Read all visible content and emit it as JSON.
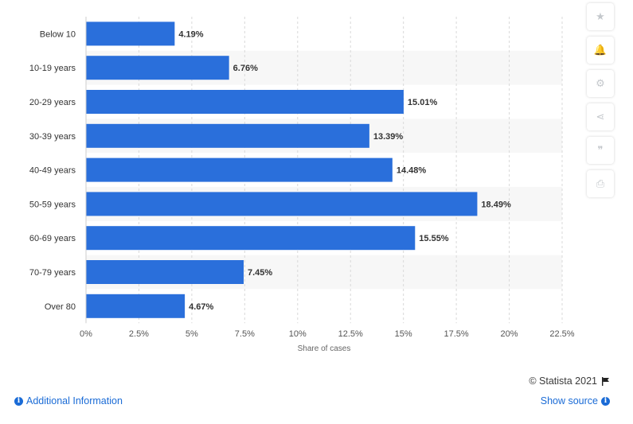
{
  "chart_data": {
    "type": "bar",
    "orientation": "horizontal",
    "categories": [
      "Below 10",
      "10-19 years",
      "20-29 years",
      "30-39 years",
      "40-49 years",
      "50-59 years",
      "60-69 years",
      "70-79 years",
      "Over 80"
    ],
    "values": [
      4.19,
      6.76,
      15.01,
      13.39,
      14.48,
      18.49,
      15.55,
      7.45,
      4.67
    ],
    "value_labels": [
      "4.19%",
      "6.76%",
      "15.01%",
      "13.39%",
      "14.48%",
      "18.49%",
      "15.55%",
      "7.45%",
      "4.67%"
    ],
    "xlabel": "Share of cases",
    "xlim": [
      0,
      22.5
    ],
    "x_ticks": [
      0,
      2.5,
      5,
      7.5,
      10,
      12.5,
      15,
      17.5,
      20,
      22.5
    ],
    "x_tick_labels": [
      "0%",
      "2.5%",
      "5%",
      "7.5%",
      "10%",
      "12.5%",
      "15%",
      "17.5%",
      "20%",
      "22.5%"
    ],
    "grid": "vertical-dashed",
    "bar_color": "#2a6fdb"
  },
  "sidebar": {
    "buttons": [
      {
        "icon": "star-icon",
        "glyph": "★"
      },
      {
        "icon": "bell-icon",
        "glyph": "🔔"
      },
      {
        "icon": "gear-icon",
        "glyph": "⚙"
      },
      {
        "icon": "share-icon",
        "glyph": "⋖"
      },
      {
        "icon": "quote-icon",
        "glyph": "❞"
      },
      {
        "icon": "print-icon",
        "glyph": "⎙"
      }
    ]
  },
  "footer": {
    "credit": "© Statista 2021",
    "additional_info": "Additional Information",
    "show_source": "Show source"
  },
  "colors": {
    "bar": "#2a6fdb",
    "link": "#1a6bd6",
    "stripe": "#f7f7f7"
  }
}
